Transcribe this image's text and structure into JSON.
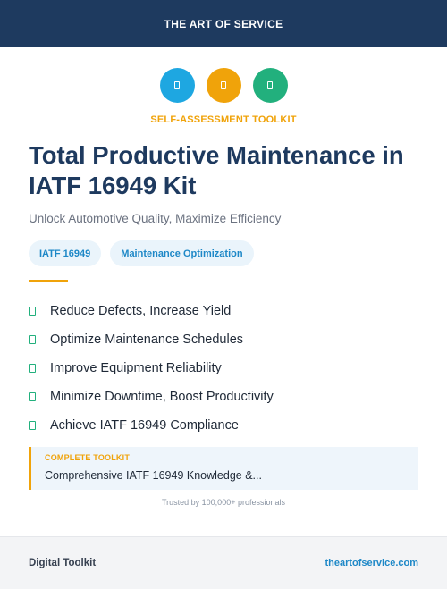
{
  "brand": {
    "banner": "THE ART OF SERVICE"
  },
  "icons": [
    {
      "name": "document-icon",
      "color": "#1ea7e1"
    },
    {
      "name": "document-icon",
      "color": "#f0a30a"
    },
    {
      "name": "document-icon",
      "color": "#22b07d"
    }
  ],
  "header": {
    "kicker": "SELF-ASSESSMENT TOOLKIT",
    "title": "Total Productive Maintenance in IATF 16949 Kit",
    "subtitle": "Unlock Automotive Quality, Maximize Efficiency"
  },
  "tags": [
    {
      "label": "IATF 16949"
    },
    {
      "label": "Maintenance Optimization"
    }
  ],
  "benefits": [
    {
      "text": "Reduce Defects, Increase Yield"
    },
    {
      "text": "Optimize Maintenance Schedules"
    },
    {
      "text": "Improve Equipment Reliability"
    },
    {
      "text": "Minimize Downtime, Boost Productivity"
    },
    {
      "text": "Achieve IATF 16949 Compliance"
    }
  ],
  "callout": {
    "label": "COMPLETE TOOLKIT",
    "text": "Comprehensive IATF 16949 Knowledge &..."
  },
  "trust": "Trusted by 100,000+ professionals",
  "footer": {
    "left": "Digital Toolkit",
    "right": "theartofservice.com"
  },
  "colors": {
    "navy": "#1e3a5f",
    "accent_orange": "#f0a30a",
    "accent_blue": "#1ea7e1",
    "accent_green": "#22b07d",
    "link": "#1e88c7"
  }
}
